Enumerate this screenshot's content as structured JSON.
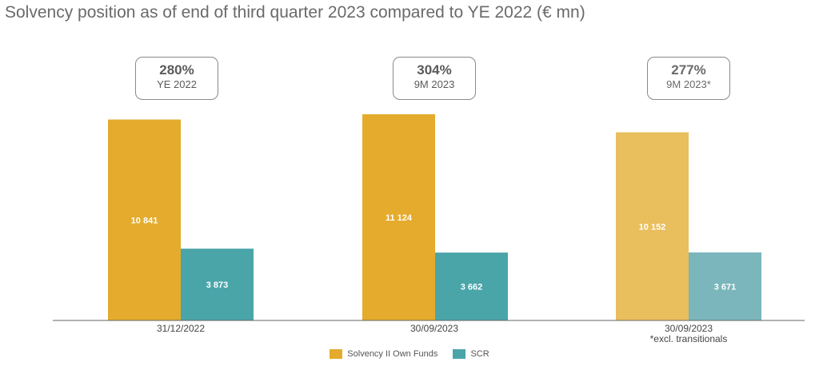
{
  "title": "Solvency position as of end of third quarter 2023 compared to YE 2022 (€ mn)",
  "colors": {
    "own_funds": "#E4AB2C",
    "scr": "#4AA5A9",
    "own_funds_light": "#E9BE5C",
    "scr_light": "#7AB6BB"
  },
  "chart_data": {
    "type": "bar",
    "categories": [
      "31/12/2022",
      "30/09/2023",
      "30/09/2023"
    ],
    "category_notes": [
      "",
      "",
      "*excl. transitionals"
    ],
    "series": [
      {
        "name": "Solvency II Own Funds",
        "values": [
          10841,
          11124,
          10152
        ],
        "labels": [
          "10 841",
          "11 124",
          "10 152"
        ]
      },
      {
        "name": "SCR",
        "values": [
          3873,
          3662,
          3671
        ],
        "labels": [
          "3 873",
          "3 662",
          "3 671"
        ]
      }
    ],
    "ratios": [
      {
        "value": "280%",
        "label": "YE 2022"
      },
      {
        "value": "304%",
        "label": "9M 2023"
      },
      {
        "value": "277%",
        "label": "9M 2023*"
      }
    ],
    "ylim": [
      0,
      11124
    ],
    "grid": false,
    "legend": "bottom"
  }
}
